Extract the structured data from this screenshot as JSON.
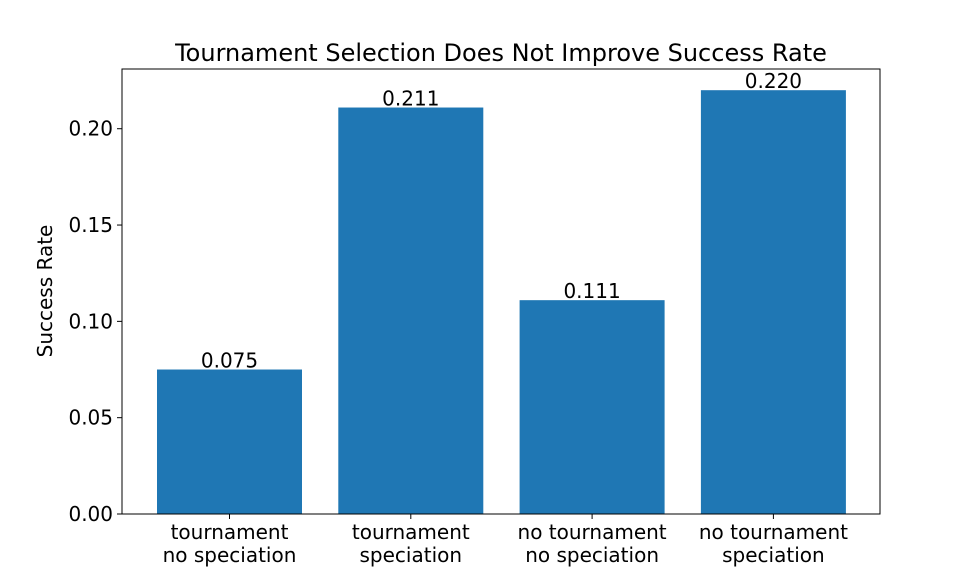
{
  "chart_data": {
    "type": "bar",
    "title": "Tournament Selection Does Not Improve Success Rate",
    "xlabel": "",
    "ylabel": "Success Rate",
    "categories": [
      [
        "tournament",
        "no speciation"
      ],
      [
        "tournament",
        "speciation"
      ],
      [
        "no tournament",
        "no speciation"
      ],
      [
        "no tournament",
        "speciation"
      ]
    ],
    "values": [
      0.075,
      0.211,
      0.111,
      0.22
    ],
    "value_labels": [
      "0.075",
      "0.211",
      "0.111",
      "0.220"
    ],
    "ylim": [
      0,
      0.231
    ],
    "yticks": [
      0.0,
      0.05,
      0.1,
      0.15,
      0.2
    ],
    "ytick_labels": [
      "0.00",
      "0.05",
      "0.10",
      "0.15",
      "0.20"
    ],
    "bar_color": "#1f77b4",
    "grid": false,
    "legend": "none"
  }
}
